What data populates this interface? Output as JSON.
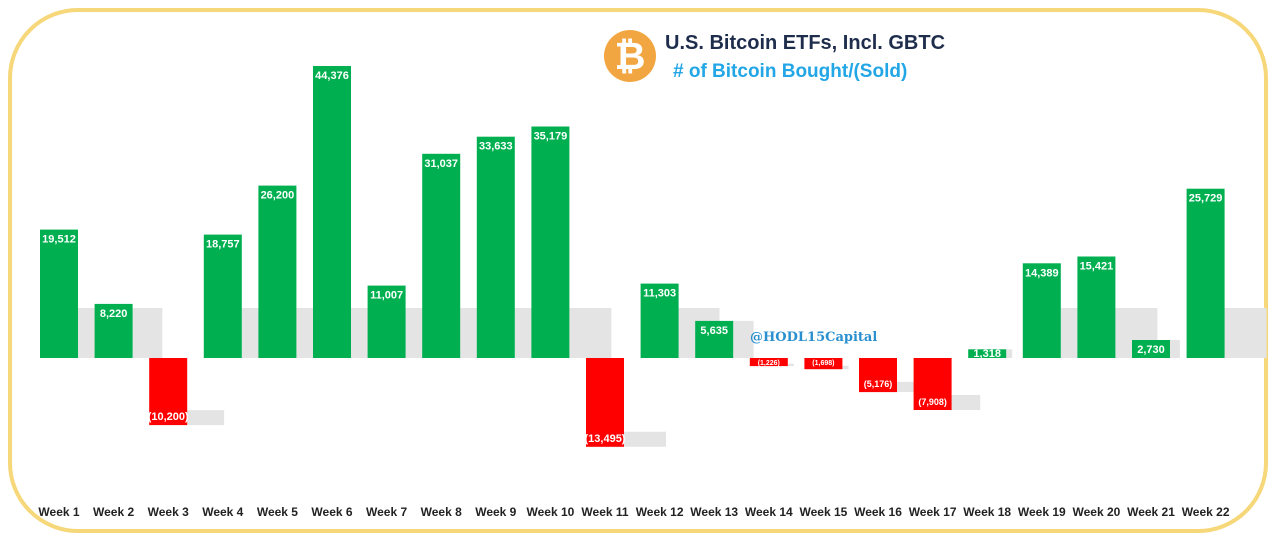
{
  "header": {
    "logo_glyph": "₿",
    "title": "U.S. Bitcoin ETFs, Incl. GBTC",
    "subtitle": "# of Bitcoin Bought/(Sold)"
  },
  "watermark": "@HODL15Capital",
  "colors": {
    "positive": "#00b050",
    "negative": "#ff0000",
    "frame": "#f6d77a",
    "logo": "#f2a641",
    "title": "#1f2d4d",
    "subtitle": "#22a6e6",
    "watermark": "#2a8fce"
  },
  "chart_data": {
    "type": "bar",
    "title": "U.S. Bitcoin ETFs, Incl. GBTC",
    "subtitle": "# of Bitcoin Bought/(Sold)",
    "categories": [
      "Week 1",
      "Week 2",
      "Week 3",
      "Week 4",
      "Week 5",
      "Week 6",
      "Week 7",
      "Week 8",
      "Week 9",
      "Week 10",
      "Week 11",
      "Week 12",
      "Week 13",
      "Week 14",
      "Week 15",
      "Week 16",
      "Week 17",
      "Week 18",
      "Week 19",
      "Week 20",
      "Week 21",
      "Week 22"
    ],
    "values": [
      19512,
      8220,
      -10200,
      18757,
      26200,
      44376,
      11007,
      31037,
      33633,
      35179,
      -13495,
      11303,
      5635,
      -1226,
      -1698,
      -5176,
      -7908,
      1318,
      14389,
      15421,
      2730,
      25729
    ],
    "data_labels": [
      "19,512",
      "8,220",
      "(10,200)",
      "18,757",
      "26,200",
      "44,376",
      "11,007",
      "31,037",
      "33,633",
      "35,179",
      "(13,495)",
      "11,303",
      "5,635",
      "(1,226)",
      "(1,698)",
      "(5,176)",
      "(7,908)",
      "1,318",
      "14,389",
      "15,421",
      "2,730",
      "25,729"
    ],
    "xlabel": "",
    "ylabel": "",
    "ylim": [
      -16000,
      46000
    ],
    "grid": false,
    "legend": "none"
  }
}
